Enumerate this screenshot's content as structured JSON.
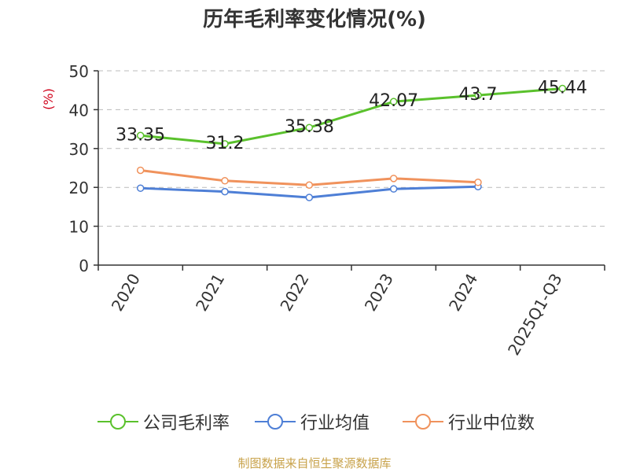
{
  "title": "历年毛利率变化情况(%)",
  "source": "制图数据来自恒生聚源数据库",
  "chart_data": {
    "type": "line",
    "title": "历年毛利率变化情况(%)",
    "ylabel": "(%)",
    "xlabel": "",
    "ylim": [
      0,
      50
    ],
    "yticks": [
      0,
      10,
      20,
      30,
      40,
      50
    ],
    "categories": [
      "2020",
      "2021",
      "2022",
      "2023",
      "2024",
      "2025Q1-Q3"
    ],
    "grid": true,
    "legend_position": "bottom",
    "series": [
      {
        "name": "公司毛利率",
        "color": "#5ac12c",
        "values": [
          33.35,
          31.2,
          35.38,
          42.07,
          43.7,
          45.44
        ],
        "labels": [
          "33.35",
          "31.2",
          "35.38",
          "42.07",
          "43.7",
          "45.44"
        ]
      },
      {
        "name": "行业均值",
        "color": "#4e7fd6",
        "values": [
          19.8,
          18.9,
          17.4,
          19.6,
          20.2,
          null
        ]
      },
      {
        "name": "行业中位数",
        "color": "#f0925c",
        "values": [
          24.4,
          21.7,
          20.6,
          22.3,
          21.3,
          null
        ]
      }
    ]
  }
}
